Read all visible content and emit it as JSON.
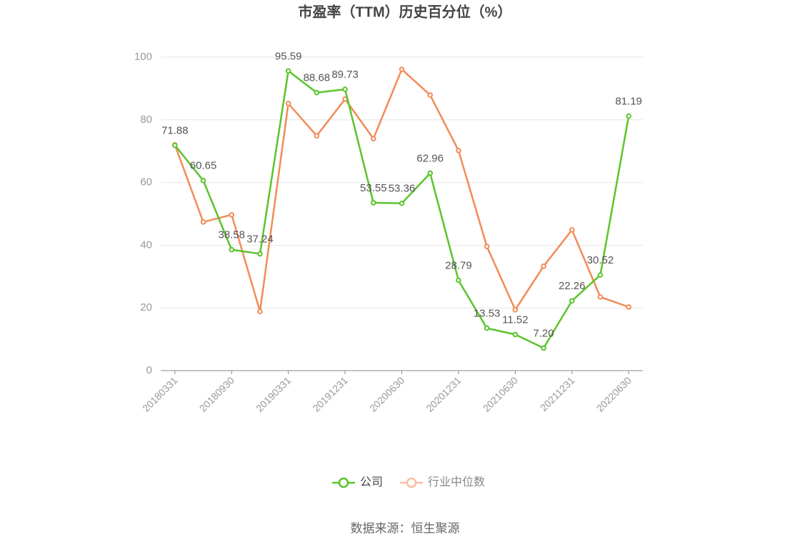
{
  "chart_data": {
    "type": "line",
    "title": "市盈率（TTM）历史百分位（%）",
    "source": "数据来源：恒生聚源",
    "categories": [
      "20180331",
      null,
      "20180930",
      null,
      "20190331",
      null,
      "20191231",
      null,
      "20200630",
      null,
      "20201231",
      null,
      "20210630",
      null,
      "20211231",
      null,
      "20220630"
    ],
    "series": [
      {
        "name": "公司",
        "color": "#5bc42b",
        "values": [
          71.88,
          60.65,
          38.58,
          37.24,
          95.59,
          88.68,
          89.73,
          53.55,
          53.36,
          62.96,
          28.79,
          13.53,
          11.52,
          7.2,
          22.26,
          30.52,
          81.19
        ],
        "value_labels": [
          "71.88",
          "60.65",
          "38.58",
          "37.24",
          "95.59",
          "88.68",
          "89.73",
          "53.55",
          "53.36",
          "62.96",
          "28.79",
          "13.53",
          "11.52",
          "7.20",
          "22.26",
          "30.52",
          "81.19"
        ]
      },
      {
        "name": "行业中位数",
        "color": "#f28b58",
        "values": [
          72,
          47.4,
          49.7,
          18.9,
          85.2,
          74.9,
          86.6,
          74.0,
          96.1,
          87.9,
          70.2,
          39.6,
          19.4,
          33.3,
          44.9,
          23.5,
          20.3
        ]
      }
    ],
    "ylim": [
      0,
      100
    ],
    "yticks": [
      0,
      20,
      40,
      60,
      80,
      100
    ],
    "grid": true
  }
}
